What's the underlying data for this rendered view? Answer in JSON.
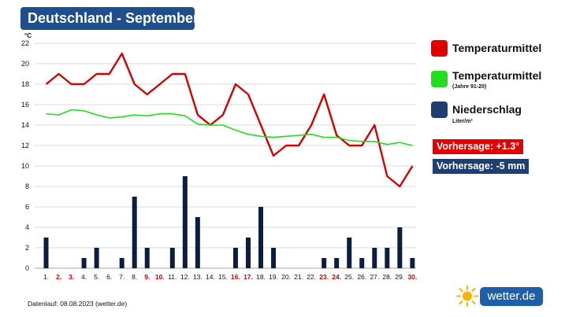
{
  "header": {
    "title": "Deutschland - September"
  },
  "legend": {
    "temp": {
      "label": "Temperaturmittel",
      "color": "#e00000"
    },
    "normal": {
      "label": "Temperaturmittel",
      "sub": "(Jahre 91-20)",
      "color": "#22dd22"
    },
    "precip": {
      "label": "Niederschlag",
      "sub": "Liter/m²",
      "color": "#1f3f72"
    }
  },
  "forecast": {
    "temp": {
      "label": "Vorhersage: +1.3°",
      "color": "#e00000"
    },
    "precip": {
      "label": "Vorhersage: -5 mm",
      "color": "#1f3f72"
    }
  },
  "footer": {
    "text": "Datenlauf: 08.08.2023 (wetter.de)"
  },
  "logo": {
    "text": "wetter.de",
    "icon": "sun-icon"
  },
  "chart_data": {
    "type": "line",
    "yunit": "°C",
    "ylim": [
      0,
      22
    ],
    "yticks": [
      0,
      2,
      4,
      6,
      8,
      10,
      12,
      14,
      16,
      18,
      20,
      22
    ],
    "grid": true,
    "categories": [
      "1.",
      "2.",
      "3.",
      "4.",
      "5.",
      "6.",
      "7.",
      "8.",
      "9.",
      "10.",
      "11.",
      "12.",
      "13.",
      "14.",
      "15.",
      "16.",
      "17.",
      "18.",
      "19.",
      "20.",
      "21.",
      "22.",
      "23.",
      "24.",
      "25.",
      "26.",
      "27.",
      "28.",
      "29.",
      "30."
    ],
    "weekend_days": [
      "2.",
      "3.",
      "9.",
      "10.",
      "16.",
      "17.",
      "23.",
      "24.",
      "30."
    ],
    "series": [
      {
        "name": "Temperaturmittel",
        "type": "line",
        "color": "#d00000",
        "values": [
          18,
          19,
          18,
          18,
          19,
          19,
          21,
          18,
          17,
          18,
          19,
          19,
          15,
          14,
          15,
          18,
          17,
          14,
          11,
          12,
          12,
          14,
          17,
          13,
          12,
          12,
          14,
          9,
          8,
          10
        ]
      },
      {
        "name": "Temperaturmittel (Jahre 91-20)",
        "type": "line",
        "color": "#22dd22",
        "values": [
          15.1,
          15.0,
          15.5,
          15.4,
          15.0,
          14.7,
          14.8,
          15.0,
          14.9,
          15.1,
          15.1,
          14.9,
          14.1,
          14.0,
          14.0,
          13.5,
          13.1,
          12.9,
          12.8,
          12.9,
          13.0,
          13.1,
          12.8,
          12.8,
          12.5,
          12.4,
          12.4,
          12.1,
          12.3,
          12.0
        ]
      },
      {
        "name": "Niederschlag",
        "type": "bar",
        "color": "#0d1e3d",
        "values": [
          3,
          0,
          0,
          1,
          2,
          0,
          1,
          7,
          2,
          0,
          2,
          9,
          5,
          0,
          0,
          2,
          3,
          6,
          2,
          0,
          0,
          0,
          1,
          1,
          3,
          1,
          2,
          2,
          4,
          1
        ]
      }
    ]
  }
}
